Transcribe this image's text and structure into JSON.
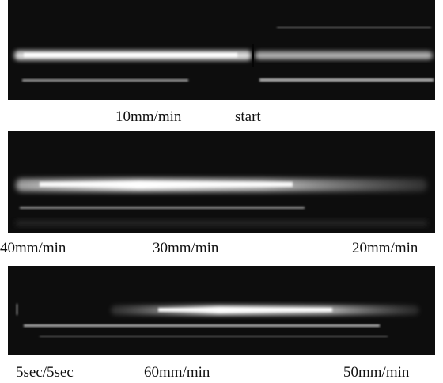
{
  "panels": [
    {
      "labels": [
        "10mm/min",
        "start"
      ]
    },
    {
      "labels": [
        "40mm/min",
        "30mm/min",
        "20mm/min"
      ]
    },
    {
      "labels": [
        "5sec/5sec",
        "60mm/min",
        "50mm/min"
      ]
    }
  ],
  "colors": {
    "background": "#0d0d0d",
    "glow": "#f2f2f2",
    "label_text": "#111111"
  }
}
